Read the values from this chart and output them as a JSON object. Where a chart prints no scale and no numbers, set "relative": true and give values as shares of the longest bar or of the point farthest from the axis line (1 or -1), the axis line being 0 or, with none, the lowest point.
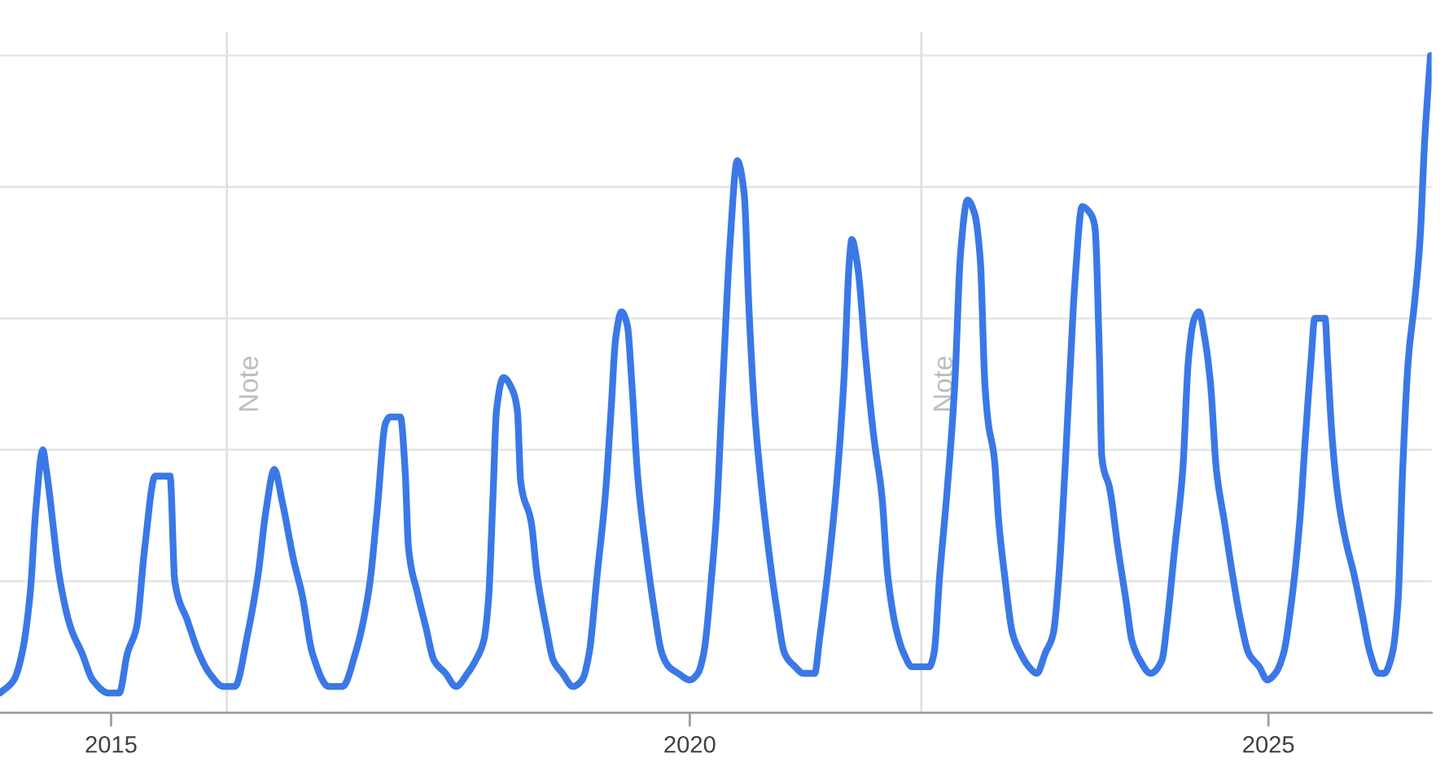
{
  "chart_data": {
    "type": "line",
    "relative": true,
    "x": [
      2014.04,
      2014.16,
      2014.23,
      2014.3,
      2014.35,
      2014.41,
      2014.44,
      2014.56,
      2014.65,
      2014.75,
      2014.84,
      2014.98,
      2015.07,
      2015.14,
      2015.22,
      2015.29,
      2015.38,
      2015.51,
      2015.55,
      2015.66,
      2015.76,
      2015.85,
      2015.97,
      2016.07,
      2016.18,
      2016.27,
      2016.34,
      2016.41,
      2016.48,
      2016.58,
      2016.65,
      2016.74,
      2016.88,
      2017.0,
      2017.11,
      2017.23,
      2017.3,
      2017.37,
      2017.41,
      2017.5,
      2017.54,
      2017.57,
      2017.65,
      2017.72,
      2017.79,
      2017.89,
      2017.98,
      2018.08,
      2018.15,
      2018.22,
      2018.26,
      2018.3,
      2018.33,
      2018.39,
      2018.47,
      2018.51,
      2018.54,
      2018.63,
      2018.68,
      2018.76,
      2018.82,
      2018.9,
      2018.99,
      2019.07,
      2019.13,
      2019.2,
      2019.27,
      2019.32,
      2019.36,
      2019.41,
      2019.46,
      2019.5,
      2019.55,
      2019.62,
      2019.69,
      2019.76,
      2019.82,
      2019.9,
      2020.0,
      2020.07,
      2020.12,
      2020.19,
      2020.23,
      2020.28,
      2020.35,
      2020.41,
      2020.47,
      2020.51,
      2020.56,
      2020.61,
      2020.68,
      2020.75,
      2020.82,
      2020.91,
      2020.98,
      2021.08,
      2021.12,
      2021.19,
      2021.26,
      2021.33,
      2021.38,
      2021.4,
      2021.45,
      2021.52,
      2021.59,
      2021.66,
      2021.71,
      2021.78,
      2021.85,
      2021.92,
      2021.98,
      2022.07,
      2022.11,
      2022.16,
      2022.22,
      2022.29,
      2022.34,
      2022.4,
      2022.46,
      2022.51,
      2022.55,
      2022.58,
      2022.63,
      2022.67,
      2022.72,
      2022.79,
      2022.86,
      2022.93,
      2023.0,
      2023.07,
      2023.14,
      2023.19,
      2023.23,
      2023.28,
      2023.33,
      2023.39,
      2023.46,
      2023.5,
      2023.54,
      2023.56,
      2023.63,
      2023.7,
      2023.77,
      2023.82,
      2023.89,
      2023.98,
      2024.08,
      2024.12,
      2024.19,
      2024.26,
      2024.31,
      2024.36,
      2024.4,
      2024.45,
      2024.5,
      2024.55,
      2024.62,
      2024.69,
      2024.76,
      2024.83,
      2024.92,
      2024.99,
      2025.06,
      2025.13,
      2025.2,
      2025.27,
      2025.32,
      2025.37,
      2025.4,
      2025.49,
      2025.51,
      2025.55,
      2025.6,
      2025.67,
      2025.74,
      2025.81,
      2025.88,
      2025.95,
      2026.0,
      2026.07,
      2026.12,
      2026.16,
      2026.21,
      2026.26,
      2026.31,
      2026.35,
      2026.4
    ],
    "series": [
      {
        "color": "#3b78e7",
        "values": [
          0.03,
          0.05,
          0.09,
          0.18,
          0.31,
          0.4,
          0.37,
          0.2,
          0.13,
          0.09,
          0.05,
          0.03,
          0.03,
          0.09,
          0.13,
          0.25,
          0.36,
          0.36,
          0.2,
          0.14,
          0.09,
          0.06,
          0.04,
          0.04,
          0.12,
          0.21,
          0.31,
          0.37,
          0.32,
          0.23,
          0.18,
          0.09,
          0.04,
          0.04,
          0.09,
          0.19,
          0.31,
          0.44,
          0.45,
          0.45,
          0.37,
          0.25,
          0.18,
          0.13,
          0.08,
          0.06,
          0.04,
          0.06,
          0.08,
          0.11,
          0.17,
          0.33,
          0.46,
          0.51,
          0.49,
          0.46,
          0.35,
          0.29,
          0.21,
          0.13,
          0.08,
          0.06,
          0.04,
          0.05,
          0.09,
          0.21,
          0.33,
          0.46,
          0.57,
          0.61,
          0.59,
          0.5,
          0.36,
          0.25,
          0.16,
          0.09,
          0.07,
          0.06,
          0.05,
          0.06,
          0.09,
          0.21,
          0.3,
          0.48,
          0.72,
          0.84,
          0.79,
          0.62,
          0.46,
          0.36,
          0.25,
          0.16,
          0.09,
          0.07,
          0.06,
          0.06,
          0.11,
          0.21,
          0.33,
          0.5,
          0.69,
          0.72,
          0.68,
          0.54,
          0.42,
          0.33,
          0.21,
          0.13,
          0.09,
          0.07,
          0.07,
          0.07,
          0.09,
          0.21,
          0.33,
          0.5,
          0.7,
          0.78,
          0.76,
          0.69,
          0.5,
          0.44,
          0.39,
          0.29,
          0.21,
          0.12,
          0.09,
          0.07,
          0.06,
          0.09,
          0.12,
          0.21,
          0.33,
          0.5,
          0.66,
          0.77,
          0.76,
          0.74,
          0.54,
          0.39,
          0.34,
          0.25,
          0.17,
          0.11,
          0.08,
          0.06,
          0.08,
          0.13,
          0.25,
          0.37,
          0.54,
          0.6,
          0.61,
          0.57,
          0.5,
          0.37,
          0.29,
          0.21,
          0.14,
          0.09,
          0.07,
          0.05,
          0.06,
          0.09,
          0.17,
          0.29,
          0.42,
          0.54,
          0.6,
          0.6,
          0.54,
          0.42,
          0.33,
          0.26,
          0.21,
          0.15,
          0.09,
          0.06,
          0.06,
          0.09,
          0.17,
          0.37,
          0.54,
          0.62,
          0.72,
          0.87,
          1.0
        ]
      }
    ],
    "xlim": [
      2014.04,
      2026.41
    ],
    "xticks": [
      2015,
      2020,
      2025
    ],
    "grid": "y",
    "marker": "none",
    "line_style": "solid",
    "ref_lines": [
      {
        "axis": "x",
        "value": 2016.0,
        "label": "Note",
        "color": "#e0e0e0"
      },
      {
        "axis": "x",
        "value": 2022.0,
        "label": "Note",
        "color": "#e0e0e0"
      }
    ]
  }
}
